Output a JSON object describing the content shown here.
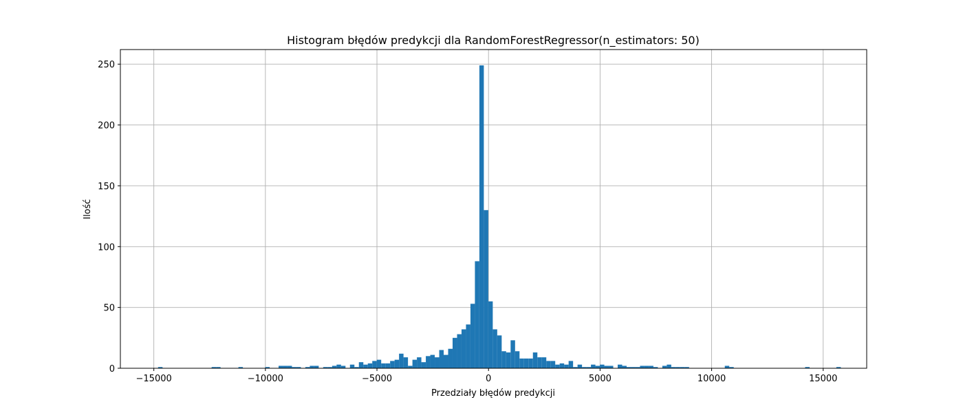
{
  "chart_data": {
    "type": "bar",
    "title": "Histogram błędów predykcji dla RandomForestRegressor(n_estimators: 50)",
    "xlabel": "Przedziały błędów predykcji",
    "ylabel": "Ilość",
    "xlim": [
      -16500,
      16950
    ],
    "ylim": [
      0,
      262
    ],
    "grid": true,
    "bar_color": "#1f77b4",
    "bin_start": -14810,
    "bin_width": 200,
    "counts": [
      1,
      0,
      0,
      0,
      0,
      0,
      0,
      0,
      0,
      0,
      0,
      0,
      1,
      1,
      0,
      0,
      0,
      0,
      1,
      0,
      0,
      0,
      0,
      0,
      1,
      0,
      0,
      2,
      2,
      2,
      1,
      1,
      0,
      1,
      2,
      2,
      0,
      1,
      1,
      2,
      3,
      2,
      0,
      3,
      1,
      5,
      3,
      4,
      6,
      7,
      4,
      4,
      6,
      7,
      12,
      9,
      2,
      7,
      9,
      5,
      10,
      11,
      9,
      15,
      11,
      16,
      25,
      28,
      32,
      36,
      53,
      88,
      249,
      130,
      55,
      32,
      27,
      14,
      13,
      23,
      14,
      8,
      8,
      8,
      13,
      9,
      9,
      6,
      6,
      3,
      4,
      3,
      6,
      1,
      3,
      1,
      1,
      3,
      2,
      3,
      2,
      2,
      0,
      3,
      2,
      1,
      1,
      1,
      2,
      2,
      2,
      1,
      0,
      2,
      3,
      1,
      1,
      1,
      1,
      0,
      0,
      0,
      0,
      0,
      0,
      0,
      0,
      2,
      1,
      0,
      0,
      0,
      0,
      0,
      0,
      0,
      0,
      0,
      0,
      0,
      0,
      0,
      0,
      0,
      0,
      1,
      0,
      0,
      0,
      0,
      0,
      0,
      1
    ],
    "xticks": [
      -15000,
      -10000,
      -5000,
      0,
      5000,
      10000,
      15000
    ],
    "xtick_labels": [
      "−15000",
      "−10000",
      "−5000",
      "0",
      "5000",
      "10000",
      "15000"
    ],
    "yticks": [
      0,
      50,
      100,
      150,
      200,
      250
    ],
    "ytick_labels": [
      "0",
      "50",
      "100",
      "150",
      "200",
      "250"
    ]
  }
}
